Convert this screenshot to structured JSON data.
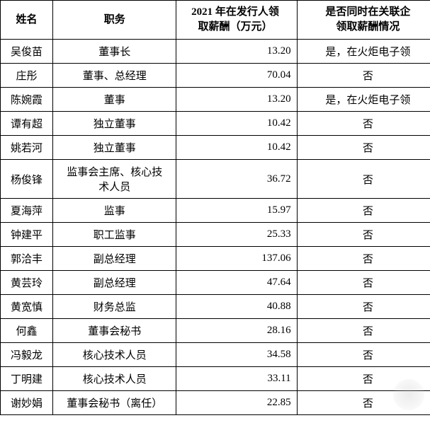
{
  "table": {
    "columns": [
      "姓名",
      "职务",
      "2021 年在发行人领\n取薪酬（万元）",
      "是否同时在关联企\n领取薪酬情况"
    ],
    "rows": [
      {
        "name": "吴俊苗",
        "position": "董事长",
        "salary": "13.20",
        "related": "是，在火炬电子领"
      },
      {
        "name": "庄彤",
        "position": "董事、总经理",
        "salary": "70.04",
        "related": "否"
      },
      {
        "name": "陈婉霞",
        "position": "董事",
        "salary": "13.20",
        "related": "是，在火炬电子领"
      },
      {
        "name": "谭有超",
        "position": "独立董事",
        "salary": "10.42",
        "related": "否"
      },
      {
        "name": "姚若河",
        "position": "独立董事",
        "salary": "10.42",
        "related": "否"
      },
      {
        "name": "杨俊锋",
        "position": "监事会主席、核心技\n术人员",
        "salary": "36.72",
        "related": "否"
      },
      {
        "name": "夏海萍",
        "position": "监事",
        "salary": "15.97",
        "related": "否"
      },
      {
        "name": "钟建平",
        "position": "职工监事",
        "salary": "25.33",
        "related": "否"
      },
      {
        "name": "郭洽丰",
        "position": "副总经理",
        "salary": "137.06",
        "related": "否"
      },
      {
        "name": "黄芸玲",
        "position": "副总经理",
        "salary": "47.64",
        "related": "否"
      },
      {
        "name": "黄宽慎",
        "position": "财务总监",
        "salary": "40.88",
        "related": "否"
      },
      {
        "name": "何鑫",
        "position": "董事会秘书",
        "salary": "28.16",
        "related": "否"
      },
      {
        "name": "冯毅龙",
        "position": "核心技术人员",
        "salary": "34.58",
        "related": "否"
      },
      {
        "name": "丁明建",
        "position": "核心技术人员",
        "salary": "33.11",
        "related": "否"
      },
      {
        "name": "谢妙娟",
        "position": "董事会秘书（离任）",
        "salary": "22.85",
        "related": "否"
      }
    ]
  }
}
